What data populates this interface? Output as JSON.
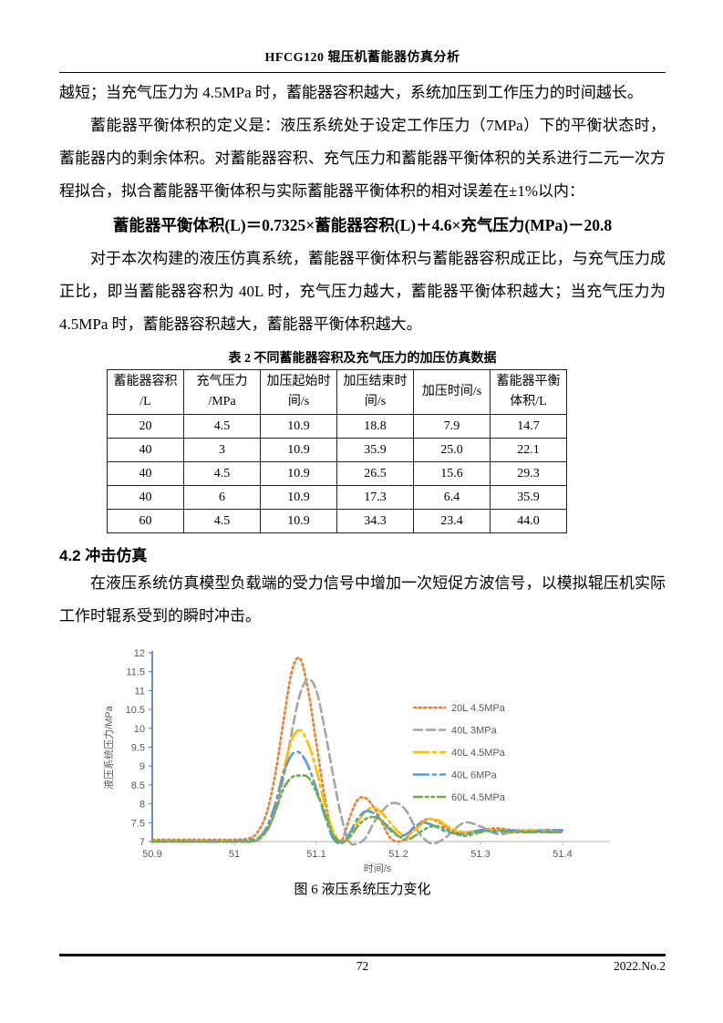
{
  "header": {
    "title": "HFCG120 辊压机蓄能器仿真分析"
  },
  "paragraphs": {
    "p1": "越短；当充气压力为 4.5MPa 时，蓄能器容积越大，系统加压到工作压力的时间越长。",
    "p2": "蓄能器平衡体积的定义是：液压系统处于设定工作压力（7MPa）下的平衡状态时，蓄能器内的剩余体积。对蓄能器容积、充气压力和蓄能器平衡体积的关系进行二元一次方程拟合，拟合蓄能器平衡体积与实际蓄能器平衡体积的相对误差在±1%以内：",
    "formula": "蓄能器平衡体积(L)＝0.7325×蓄能器容积(L)＋4.6×充气压力(MPa)－20.8",
    "p3": "对于本次构建的液压仿真系统，蓄能器平衡体积与蓄能器容积成正比，与充气压力成正比，即当蓄能器容积为 40L 时，充气压力越大，蓄能器平衡体积越大；当充气压力为 4.5MPa 时，蓄能器容积越大，蓄能器平衡体积越大。",
    "section_heading": "4.2 冲击仿真",
    "p4": "在液压系统仿真模型负载端的受力信号中增加一次短促方波信号，以模拟辊压机实际工作时辊系受到的瞬时冲击。"
  },
  "table": {
    "caption": "表 2 不同蓄能器容积及充气压力的加压仿真数据",
    "headers": [
      "蓄能器容积\n/L",
      "充气压力\n/MPa",
      "加压起始时\n间/s",
      "加压结束时\n间/s",
      "加压时间/s",
      "蓄能器平衡\n体积/L"
    ],
    "rows": [
      [
        "20",
        "4.5",
        "10.9",
        "18.8",
        "7.9",
        "14.7"
      ],
      [
        "40",
        "3",
        "10.9",
        "35.9",
        "25.0",
        "22.1"
      ],
      [
        "40",
        "4.5",
        "10.9",
        "26.5",
        "15.6",
        "29.3"
      ],
      [
        "40",
        "6",
        "10.9",
        "17.3",
        "6.4",
        "35.9"
      ],
      [
        "60",
        "4.5",
        "10.9",
        "34.3",
        "23.4",
        "44.0"
      ]
    ]
  },
  "figure": {
    "caption": "图 6 液压系统压力变化"
  },
  "footer": {
    "page_number": "72",
    "issue": "2022.No.2"
  },
  "chart_data": {
    "type": "line",
    "title": "",
    "xlabel": "时间/s",
    "ylabel": "液压系统压力/MPa",
    "xlim": [
      50.9,
      51.4
    ],
    "ylim": [
      7,
      12
    ],
    "xticks": [
      "50.9",
      "51",
      "51.1",
      "51.2",
      "51.3",
      "51.4"
    ],
    "yticks": [
      7,
      7.5,
      8,
      8.5,
      9,
      9.5,
      10,
      10.5,
      11,
      11.5,
      12
    ],
    "grid": false,
    "legend_position": "inside-right",
    "axis_color": "#4472C4",
    "x_axis_color": "#BFBFBF",
    "series": [
      {
        "name": "20L 4.5MPa",
        "color": "#ED7D31",
        "dash": "2.2 3.4",
        "width": 2.6,
        "points": [
          [
            50.9,
            7.05
          ],
          [
            50.95,
            7.05
          ],
          [
            51.0,
            7.05
          ],
          [
            51.02,
            7.1
          ],
          [
            51.03,
            7.3
          ],
          [
            51.04,
            7.8
          ],
          [
            51.05,
            8.8
          ],
          [
            51.06,
            10.2
          ],
          [
            51.07,
            11.5
          ],
          [
            51.08,
            11.85
          ],
          [
            51.09,
            11.0
          ],
          [
            51.1,
            9.6
          ],
          [
            51.11,
            8.2
          ],
          [
            51.12,
            7.2
          ],
          [
            51.13,
            7.0
          ],
          [
            51.14,
            7.6
          ],
          [
            51.15,
            8.1
          ],
          [
            51.16,
            8.15
          ],
          [
            51.17,
            7.9
          ],
          [
            51.18,
            7.5
          ],
          [
            51.19,
            7.1
          ],
          [
            51.2,
            7.0
          ],
          [
            51.21,
            7.1
          ],
          [
            51.22,
            7.35
          ],
          [
            51.23,
            7.55
          ],
          [
            51.24,
            7.6
          ],
          [
            51.25,
            7.5
          ],
          [
            51.26,
            7.35
          ],
          [
            51.28,
            7.2
          ],
          [
            51.3,
            7.3
          ],
          [
            51.32,
            7.35
          ],
          [
            51.34,
            7.3
          ],
          [
            51.36,
            7.3
          ],
          [
            51.38,
            7.3
          ],
          [
            51.4,
            7.3
          ]
        ]
      },
      {
        "name": "40L 3MPa",
        "color": "#A5A5A5",
        "dash": "9 5",
        "width": 2.6,
        "points": [
          [
            50.9,
            7.0
          ],
          [
            50.95,
            7.0
          ],
          [
            51.0,
            7.0
          ],
          [
            51.02,
            7.0
          ],
          [
            51.03,
            7.05
          ],
          [
            51.04,
            7.3
          ],
          [
            51.05,
            7.8
          ],
          [
            51.06,
            8.7
          ],
          [
            51.07,
            9.9
          ],
          [
            51.08,
            10.9
          ],
          [
            51.09,
            11.3
          ],
          [
            51.1,
            11.0
          ],
          [
            51.11,
            10.0
          ],
          [
            51.12,
            8.8
          ],
          [
            51.13,
            7.7
          ],
          [
            51.14,
            7.0
          ],
          [
            51.15,
            6.95
          ],
          [
            51.16,
            7.1
          ],
          [
            51.17,
            7.5
          ],
          [
            51.18,
            7.8
          ],
          [
            51.19,
            8.0
          ],
          [
            51.2,
            8.0
          ],
          [
            51.21,
            7.8
          ],
          [
            51.22,
            7.4
          ],
          [
            51.23,
            7.1
          ],
          [
            51.24,
            6.95
          ],
          [
            51.25,
            7.0
          ],
          [
            51.26,
            7.15
          ],
          [
            51.28,
            7.5
          ],
          [
            51.3,
            7.4
          ],
          [
            51.32,
            7.2
          ],
          [
            51.34,
            7.25
          ],
          [
            51.36,
            7.3
          ],
          [
            51.38,
            7.25
          ],
          [
            51.4,
            7.25
          ]
        ]
      },
      {
        "name": "40L 4.5MPa",
        "color": "#FFC000",
        "dash": "16 5 3 5",
        "width": 2.8,
        "points": [
          [
            50.9,
            7.0
          ],
          [
            50.95,
            7.0
          ],
          [
            51.0,
            7.0
          ],
          [
            51.02,
            7.05
          ],
          [
            51.03,
            7.1
          ],
          [
            51.04,
            7.4
          ],
          [
            51.05,
            8.0
          ],
          [
            51.06,
            8.9
          ],
          [
            51.07,
            9.7
          ],
          [
            51.08,
            9.95
          ],
          [
            51.09,
            9.6
          ],
          [
            51.1,
            8.9
          ],
          [
            51.11,
            8.0
          ],
          [
            51.12,
            7.3
          ],
          [
            51.13,
            7.0
          ],
          [
            51.14,
            7.1
          ],
          [
            51.15,
            7.5
          ],
          [
            51.16,
            7.8
          ],
          [
            51.17,
            7.9
          ],
          [
            51.18,
            7.75
          ],
          [
            51.19,
            7.5
          ],
          [
            51.2,
            7.25
          ],
          [
            51.21,
            7.15
          ],
          [
            51.22,
            7.3
          ],
          [
            51.23,
            7.5
          ],
          [
            51.24,
            7.6
          ],
          [
            51.25,
            7.55
          ],
          [
            51.26,
            7.4
          ],
          [
            51.28,
            7.25
          ],
          [
            51.3,
            7.3
          ],
          [
            51.32,
            7.3
          ],
          [
            51.34,
            7.25
          ],
          [
            51.36,
            7.3
          ],
          [
            51.38,
            7.3
          ],
          [
            51.4,
            7.3
          ]
        ]
      },
      {
        "name": "40L 6MPa",
        "color": "#5B9BD5",
        "dash": "16 5 3 5",
        "width": 2.6,
        "points": [
          [
            50.9,
            7.0
          ],
          [
            50.95,
            7.0
          ],
          [
            51.0,
            7.0
          ],
          [
            51.02,
            7.05
          ],
          [
            51.03,
            7.1
          ],
          [
            51.04,
            7.4
          ],
          [
            51.05,
            8.0
          ],
          [
            51.06,
            8.8
          ],
          [
            51.07,
            9.3
          ],
          [
            51.08,
            9.35
          ],
          [
            51.09,
            9.0
          ],
          [
            51.1,
            8.4
          ],
          [
            51.11,
            7.7
          ],
          [
            51.12,
            7.1
          ],
          [
            51.13,
            6.95
          ],
          [
            51.14,
            7.2
          ],
          [
            51.15,
            7.6
          ],
          [
            51.16,
            7.8
          ],
          [
            51.17,
            7.75
          ],
          [
            51.18,
            7.55
          ],
          [
            51.19,
            7.3
          ],
          [
            51.2,
            7.15
          ],
          [
            51.21,
            7.2
          ],
          [
            51.22,
            7.4
          ],
          [
            51.23,
            7.5
          ],
          [
            51.24,
            7.45
          ],
          [
            51.25,
            7.35
          ],
          [
            51.26,
            7.25
          ],
          [
            51.28,
            7.2
          ],
          [
            51.3,
            7.3
          ],
          [
            51.32,
            7.25
          ],
          [
            51.34,
            7.3
          ],
          [
            51.36,
            7.25
          ],
          [
            51.38,
            7.3
          ],
          [
            51.4,
            7.3
          ]
        ]
      },
      {
        "name": "60L 4.5MPa",
        "color": "#70AD47",
        "dash": "9 4 2.5 4 2.5 4",
        "width": 2.6,
        "points": [
          [
            50.9,
            7.0
          ],
          [
            50.95,
            7.0
          ],
          [
            51.0,
            7.0
          ],
          [
            51.02,
            7.0
          ],
          [
            51.03,
            7.1
          ],
          [
            51.04,
            7.3
          ],
          [
            51.05,
            7.8
          ],
          [
            51.06,
            8.4
          ],
          [
            51.07,
            8.7
          ],
          [
            51.08,
            8.75
          ],
          [
            51.09,
            8.7
          ],
          [
            51.1,
            8.3
          ],
          [
            51.11,
            7.8
          ],
          [
            51.12,
            7.2
          ],
          [
            51.13,
            7.0
          ],
          [
            51.14,
            7.1
          ],
          [
            51.15,
            7.4
          ],
          [
            51.16,
            7.6
          ],
          [
            51.17,
            7.65
          ],
          [
            51.18,
            7.55
          ],
          [
            51.19,
            7.35
          ],
          [
            51.2,
            7.15
          ],
          [
            51.21,
            7.05
          ],
          [
            51.22,
            7.15
          ],
          [
            51.23,
            7.3
          ],
          [
            51.24,
            7.4
          ],
          [
            51.25,
            7.4
          ],
          [
            51.26,
            7.3
          ],
          [
            51.28,
            7.15
          ],
          [
            51.3,
            7.25
          ],
          [
            51.32,
            7.3
          ],
          [
            51.34,
            7.25
          ],
          [
            51.36,
            7.25
          ],
          [
            51.38,
            7.25
          ],
          [
            51.4,
            7.25
          ]
        ]
      }
    ]
  }
}
